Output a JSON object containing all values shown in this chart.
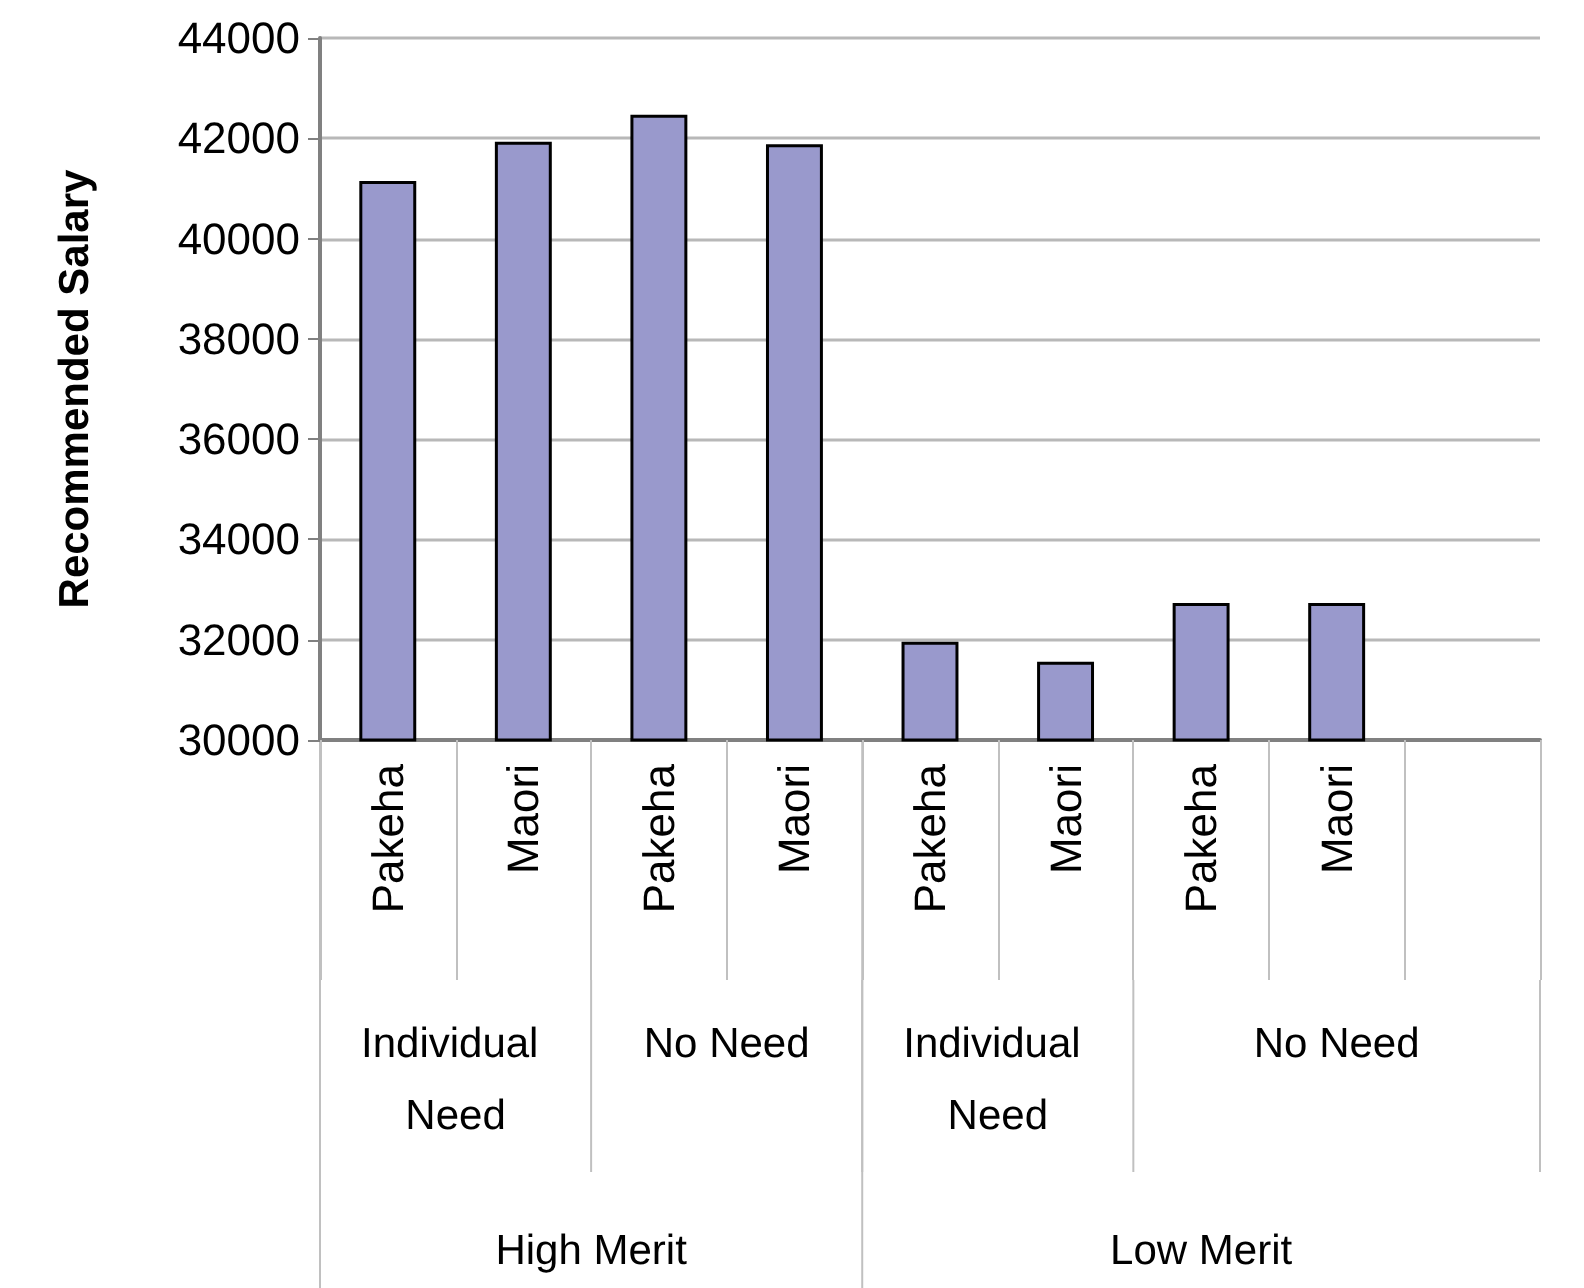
{
  "chart_data": {
    "type": "bar",
    "ylabel": "Recommended Salary",
    "categories": [
      "Pakeha",
      "Maori",
      "Pakeha",
      "Maori",
      "Pakeha",
      "Maori",
      "Pakeha",
      "Maori",
      null
    ],
    "values": [
      41150,
      41930,
      42470,
      41880,
      31960,
      31560,
      32730,
      32730,
      null
    ],
    "color": "#9999cc",
    "ylim": [
      30000,
      44000
    ],
    "yticks": [
      30000,
      32000,
      34000,
      36000,
      38000,
      40000,
      42000,
      44000
    ],
    "grid": "y",
    "annotations": [
      "Individual Need",
      "No Need",
      "Individual Need",
      "No Need",
      "High Merit",
      "Low Merit"
    ]
  }
}
